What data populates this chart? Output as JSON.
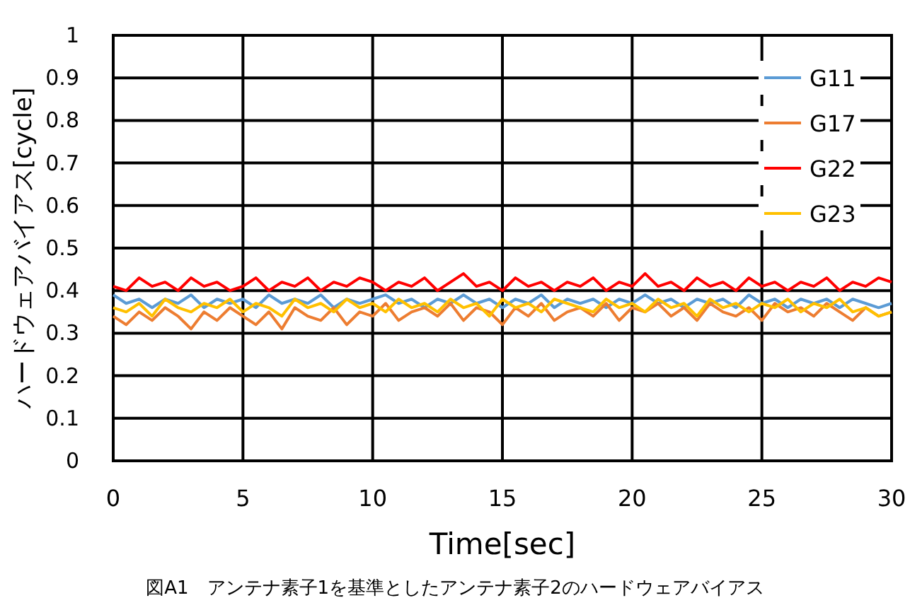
{
  "chart_data": {
    "type": "line",
    "xlabel": "Time[sec]",
    "ylabel": "ハードウェアバイアス[cycle]",
    "annotations": [
      "図A1　アンテナ素子1を基準としたアンテナ素子2のハードウェアバイアス"
    ],
    "xlim": [
      0,
      30
    ],
    "ylim": [
      0,
      1
    ],
    "xticks": [
      0,
      5,
      10,
      15,
      20,
      25,
      30
    ],
    "yticks": [
      0,
      0.1,
      0.2,
      0.3,
      0.4,
      0.5,
      0.6,
      0.7,
      0.8,
      0.9,
      1
    ],
    "grid": true,
    "legend": "top right",
    "line_style": "solid",
    "x": [
      0,
      0.5,
      1,
      1.5,
      2,
      2.5,
      3,
      3.5,
      4,
      4.5,
      5,
      5.5,
      6,
      6.5,
      7,
      7.5,
      8,
      8.5,
      9,
      9.5,
      10,
      10.5,
      11,
      11.5,
      12,
      12.5,
      13,
      13.5,
      14,
      14.5,
      15,
      15.5,
      16,
      16.5,
      17,
      17.5,
      18,
      18.5,
      19,
      19.5,
      20,
      20.5,
      21,
      21.5,
      22,
      22.5,
      23,
      23.5,
      24,
      24.5,
      25,
      25.5,
      26,
      26.5,
      27,
      27.5,
      28,
      28.5,
      29,
      29.5,
      30
    ],
    "series": [
      {
        "name": "G11",
        "color": "#5b9bd5",
        "values": [
          0.39,
          0.37,
          0.38,
          0.36,
          0.38,
          0.37,
          0.39,
          0.36,
          0.38,
          0.37,
          0.38,
          0.36,
          0.39,
          0.37,
          0.38,
          0.37,
          0.39,
          0.36,
          0.38,
          0.37,
          0.38,
          0.39,
          0.37,
          0.38,
          0.36,
          0.38,
          0.37,
          0.39,
          0.37,
          0.38,
          0.36,
          0.38,
          0.37,
          0.39,
          0.36,
          0.38,
          0.37,
          0.38,
          0.36,
          0.38,
          0.37,
          0.39,
          0.37,
          0.38,
          0.36,
          0.38,
          0.37,
          0.38,
          0.36,
          0.39,
          0.37,
          0.38,
          0.36,
          0.38,
          0.37,
          0.38,
          0.36,
          0.38,
          0.37,
          0.36,
          0.37
        ]
      },
      {
        "name": "G17",
        "color": "#ed7d31",
        "values": [
          0.34,
          0.32,
          0.35,
          0.33,
          0.36,
          0.34,
          0.31,
          0.35,
          0.33,
          0.36,
          0.34,
          0.32,
          0.35,
          0.31,
          0.36,
          0.34,
          0.33,
          0.36,
          0.32,
          0.35,
          0.34,
          0.37,
          0.33,
          0.35,
          0.36,
          0.34,
          0.37,
          0.33,
          0.36,
          0.35,
          0.32,
          0.36,
          0.34,
          0.37,
          0.33,
          0.35,
          0.36,
          0.34,
          0.37,
          0.33,
          0.36,
          0.35,
          0.37,
          0.34,
          0.36,
          0.33,
          0.37,
          0.35,
          0.34,
          0.36,
          0.33,
          0.37,
          0.35,
          0.36,
          0.34,
          0.37,
          0.35,
          0.33,
          0.36,
          0.34,
          0.35
        ]
      },
      {
        "name": "G22",
        "color": "#ff0000",
        "values": [
          0.41,
          0.4,
          0.43,
          0.41,
          0.42,
          0.4,
          0.43,
          0.41,
          0.42,
          0.4,
          0.41,
          0.43,
          0.4,
          0.42,
          0.41,
          0.43,
          0.4,
          0.42,
          0.41,
          0.43,
          0.42,
          0.4,
          0.42,
          0.41,
          0.43,
          0.4,
          0.42,
          0.44,
          0.41,
          0.42,
          0.4,
          0.43,
          0.41,
          0.42,
          0.4,
          0.42,
          0.41,
          0.43,
          0.4,
          0.42,
          0.41,
          0.44,
          0.41,
          0.42,
          0.4,
          0.43,
          0.41,
          0.42,
          0.4,
          0.43,
          0.41,
          0.42,
          0.4,
          0.42,
          0.41,
          0.43,
          0.4,
          0.42,
          0.41,
          0.43,
          0.42
        ]
      },
      {
        "name": "G23",
        "color": "#ffc000",
        "values": [
          0.36,
          0.35,
          0.37,
          0.34,
          0.38,
          0.36,
          0.35,
          0.37,
          0.36,
          0.38,
          0.35,
          0.37,
          0.36,
          0.34,
          0.38,
          0.36,
          0.37,
          0.35,
          0.38,
          0.36,
          0.37,
          0.35,
          0.38,
          0.36,
          0.37,
          0.35,
          0.38,
          0.36,
          0.37,
          0.34,
          0.38,
          0.36,
          0.37,
          0.35,
          0.38,
          0.37,
          0.36,
          0.35,
          0.38,
          0.36,
          0.37,
          0.35,
          0.38,
          0.36,
          0.37,
          0.34,
          0.38,
          0.36,
          0.37,
          0.35,
          0.37,
          0.36,
          0.38,
          0.35,
          0.37,
          0.36,
          0.38,
          0.35,
          0.36,
          0.34,
          0.35
        ]
      }
    ]
  }
}
